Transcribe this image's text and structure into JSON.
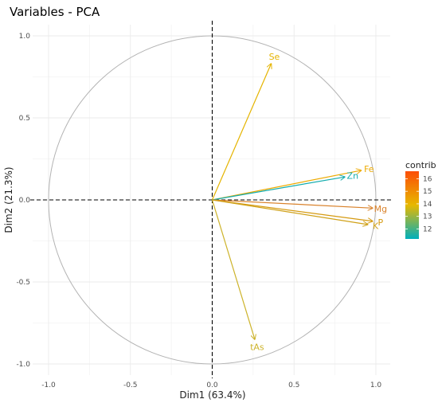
{
  "chart_data": {
    "type": "scatter",
    "title": "Variables - PCA",
    "xlabel": "Dim1 (63.4%)",
    "ylabel": "Dim2 (21.3%)",
    "xlim": [
      -1.0,
      1.0
    ],
    "ylim": [
      -1.0,
      1.0
    ],
    "x_ticks": [
      "-1.0",
      "-0.5",
      "0.0",
      "0.5",
      "1.0"
    ],
    "y_ticks": [
      "1.0",
      "0.5",
      "0.0",
      "-0.5",
      "-1.0"
    ],
    "grid": true,
    "correlation_circle": true,
    "legend": {
      "title": "contrib",
      "position": "right",
      "ticks": [
        "16",
        "15",
        "14",
        "13",
        "12"
      ],
      "range": [
        11.2,
        16.6
      ],
      "colors": [
        "#00afbb",
        "#e7b800",
        "#fc4e07"
      ]
    },
    "variables": [
      {
        "label": "Se",
        "x": 0.36,
        "y": 0.83,
        "contrib": 13.6,
        "color": "#e5b400"
      },
      {
        "label": "Fe",
        "x": 0.91,
        "y": 0.18,
        "contrib": 14.3,
        "color": "#edaa00"
      },
      {
        "label": "Zn",
        "x": 0.81,
        "y": 0.14,
        "contrib": 11.4,
        "color": "#14adae"
      },
      {
        "label": "Mg",
        "x": 0.98,
        "y": -0.05,
        "contrib": 16.5,
        "color": "#d9822b"
      },
      {
        "label": "P",
        "x": 0.98,
        "y": -0.13,
        "contrib": 15.8,
        "color": "#d59a11"
      },
      {
        "label": "K",
        "x": 0.95,
        "y": -0.15,
        "contrib": 15.0,
        "color": "#d0a118"
      },
      {
        "label": "tAs",
        "x": 0.26,
        "y": -0.85,
        "contrib": 13.0,
        "color": "#cdb32a"
      }
    ]
  }
}
